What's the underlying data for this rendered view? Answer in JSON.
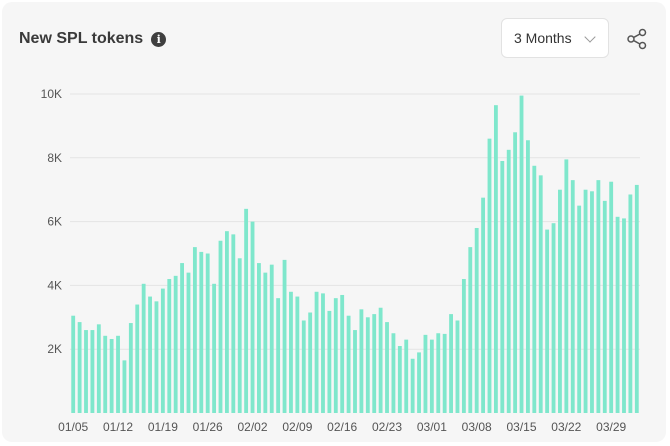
{
  "header": {
    "title": "New SPL tokens",
    "info_icon": "info-icon",
    "range_selected": "3 Months",
    "share_icon": "share-icon"
  },
  "colors": {
    "bar": "#7fe7cc",
    "card_bg": "#f6f6f6",
    "text": "#3a3a3a"
  },
  "chart_data": {
    "type": "bar",
    "title": "New SPL tokens",
    "xlabel": "",
    "ylabel": "",
    "ylim": [
      0,
      10000
    ],
    "y_ticks": [
      {
        "value": 2000,
        "label": "2K"
      },
      {
        "value": 4000,
        "label": "4K"
      },
      {
        "value": 6000,
        "label": "6K"
      },
      {
        "value": 8000,
        "label": "8K"
      },
      {
        "value": 10000,
        "label": "10K"
      }
    ],
    "x_tick_labels": [
      "01/05",
      "01/12",
      "01/19",
      "01/26",
      "02/02",
      "02/09",
      "02/16",
      "02/23",
      "03/01",
      "03/08",
      "03/15",
      "03/22",
      "03/29"
    ],
    "grid": "horizontal",
    "series": [
      {
        "values": [
          3050,
          2850,
          2600,
          2600,
          2780,
          2420,
          2320,
          2420,
          1650,
          2820,
          3400,
          4050,
          3650,
          3500,
          3900,
          4200,
          4300,
          4700,
          4400,
          5200,
          5050,
          5000,
          4050,
          5400,
          5700,
          5600,
          4850,
          6400,
          6000,
          4700,
          4400,
          4650,
          3600,
          4800,
          3800,
          3650,
          2900,
          3150,
          3800,
          3750,
          3200,
          3600,
          3700,
          3050,
          2600,
          3250,
          3000,
          3100,
          3300,
          2850,
          2500,
          2100,
          2300,
          1700,
          1900,
          2450,
          2300,
          2500,
          2480,
          3100,
          2900,
          4200,
          5200,
          5800,
          6750,
          8600,
          9650,
          7900,
          8250,
          8800,
          9950,
          8550,
          7750,
          7450,
          5750,
          5950,
          7000,
          7950,
          7300,
          6500,
          7000,
          6950,
          7300,
          6650,
          7250,
          6150,
          6100,
          6850,
          7150
        ]
      }
    ]
  }
}
